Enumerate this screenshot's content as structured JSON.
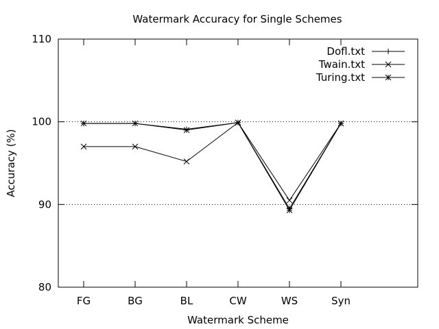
{
  "chart_data": {
    "type": "line",
    "title": "Watermark Accuracy for Single Schemes",
    "xlabel": "Watermark Scheme",
    "ylabel": "Accuracy (%)",
    "categories": [
      "FG",
      "BG",
      "BL",
      "CW",
      "WS",
      "Syn"
    ],
    "ylim": [
      80,
      110
    ],
    "yticks": [
      "80",
      "90",
      "100",
      "110"
    ],
    "grid": {
      "horizontal_dotted_at": [
        90,
        100
      ]
    },
    "legend_position": "top-right",
    "series": [
      {
        "name": "Dofl.txt",
        "marker": "plus",
        "values": [
          99.8,
          99.8,
          99.1,
          99.9,
          89.5,
          99.8
        ]
      },
      {
        "name": "Twain.txt",
        "marker": "cross",
        "values": [
          97.0,
          97.0,
          95.2,
          99.9,
          90.5,
          99.8
        ]
      },
      {
        "name": "Turing.txt",
        "marker": "star",
        "values": [
          99.8,
          99.8,
          99.0,
          99.9,
          89.3,
          99.8
        ]
      }
    ],
    "line_color": "#000000"
  }
}
